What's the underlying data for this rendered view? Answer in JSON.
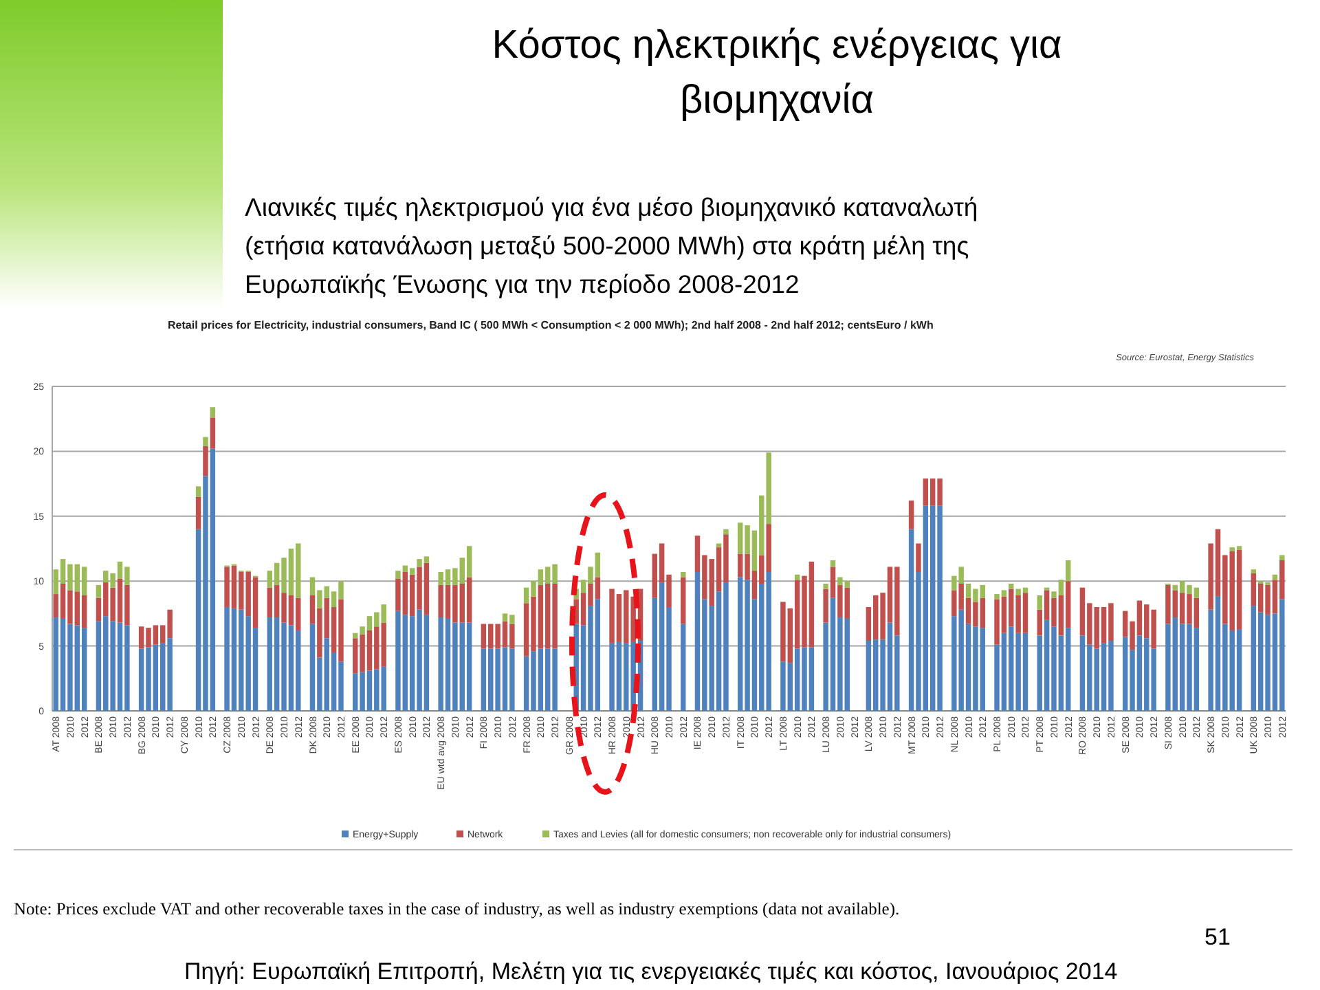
{
  "chart_data": {
    "type": "bar",
    "stacked": true,
    "title": "Κόστος ηλεκτρικής ενέργειας για βιομηχανία",
    "subtitle": "Λιανικές τιμές ηλεκτρισμού για ένα μέσο βιομηχανικό καταναλωτή (ετήσια κατανάλωση μεταξύ 500-2000 MWh) στα κράτη μέλη της Ευρωπαϊκής Ένωσης για την περίοδο 2008-2012",
    "annotations": [
      "Retail prices for Electricity, industrial consumers, Band IC ( 500 MWh < Consumption < 2 000 MWh); 2nd half 2008 - 2nd half 2012; centsEuro / kWh",
      "Source: Eurostat, Energy Statistics",
      "Note: Prices exclude VAT and other recoverable taxes in the case of industry, as well as industry exemptions (data not available).",
      "51",
      "Πηγή: Ευρωπαϊκή Επιτροπή, Μελέτη για τις ενεργειακές τιμές και κόστος, Ιανουάριος 2014"
    ],
    "categories": [
      "AT 2008",
      null,
      "2010",
      null,
      "2012",
      null,
      "BE 2008",
      null,
      "2010",
      null,
      "2012",
      null,
      "BG 2008",
      null,
      "2010",
      null,
      "2012",
      null,
      "CY 2008",
      null,
      "2010",
      null,
      "2012",
      null,
      "CZ 2008",
      null,
      "2010",
      null,
      "2012",
      null,
      "DE 2008",
      null,
      "2010",
      null,
      "2012",
      null,
      "DK 2008",
      null,
      "2010",
      null,
      "2012",
      null,
      "EE 2008",
      null,
      "2010",
      null,
      "2012",
      null,
      "ES 2008",
      null,
      "2010",
      null,
      "2012",
      null,
      "EU wtd avg 2008",
      null,
      "2010",
      null,
      "2012",
      null,
      "FI 2008",
      null,
      "2010",
      null,
      "2012",
      null,
      "FR 2008",
      null,
      "2010",
      null,
      "2012",
      null,
      "GR 2008",
      null,
      "2010",
      null,
      "2012",
      null,
      "HR 2008",
      null,
      "2010",
      null,
      "2012",
      null,
      "HU 2008",
      null,
      "2010",
      null,
      "2012",
      null,
      "IE 2008",
      null,
      "2010",
      null,
      "2012",
      null,
      "IT 2008",
      null,
      "2010",
      null,
      "2012",
      null,
      "LT 2008",
      null,
      "2010",
      null,
      "2012",
      null,
      "LU 2008",
      null,
      "2010",
      null,
      "2012",
      null,
      "LV 2008",
      null,
      "2010",
      null,
      "2012",
      null,
      "MT 2008",
      null,
      "2010",
      null,
      "2012",
      null,
      "NL 2008",
      null,
      "2010",
      null,
      "2012",
      null,
      "PL 2008",
      null,
      "2010",
      null,
      "2012",
      null,
      "PT 2008",
      null,
      "2010",
      null,
      "2012",
      null,
      "RO 2008",
      null,
      "2010",
      null,
      "2012",
      null,
      "SE 2008",
      null,
      "2010",
      null,
      "2012",
      null,
      "SI 2008",
      null,
      "2010",
      null,
      "2012",
      null,
      "SK 2008",
      null,
      "2010",
      null,
      "2012",
      null,
      "UK 2008",
      null,
      "2010",
      null,
      "2012"
    ],
    "series": [
      {
        "name": "Energy+Supply",
        "color": "#4f81bd",
        "values": [
          7.2,
          7.1,
          6.7,
          6.6,
          6.4,
          null,
          6.9,
          7.3,
          6.9,
          6.8,
          6.6,
          null,
          4.8,
          4.9,
          5.1,
          5.2,
          5.6,
          null,
          null,
          null,
          14.0,
          18.1,
          20.2,
          null,
          8.0,
          7.9,
          7.8,
          7.3,
          6.4,
          null,
          7.2,
          7.2,
          6.8,
          6.6,
          6.2,
          null,
          6.7,
          4.1,
          5.6,
          4.5,
          3.8,
          null,
          2.9,
          3.0,
          3.1,
          3.2,
          3.4,
          null,
          7.7,
          7.4,
          7.3,
          7.8,
          7.4,
          null,
          7.2,
          7.1,
          6.8,
          6.8,
          6.8,
          null,
          4.8,
          4.8,
          4.8,
          4.9,
          4.8,
          null,
          4.2,
          4.6,
          4.8,
          4.8,
          4.8,
          null,
          null,
          6.7,
          6.6,
          8.1,
          8.6,
          null,
          5.2,
          5.3,
          5.2,
          5.3,
          5.4,
          null,
          8.7,
          9.9,
          8.0,
          null,
          6.7,
          null,
          10.7,
          8.6,
          8.1,
          9.2,
          9.9,
          null,
          10.3,
          10.1,
          8.6,
          9.8,
          10.7,
          null,
          3.8,
          3.7,
          4.8,
          4.9,
          4.9,
          null,
          6.8,
          8.7,
          7.2,
          7.1,
          null,
          null,
          5.4,
          5.5,
          5.5,
          6.8,
          5.8,
          null,
          14.0,
          10.7,
          15.8,
          15.8,
          15.8,
          null,
          7.3,
          7.8,
          6.7,
          6.5,
          6.4,
          null,
          5.1,
          6.0,
          6.5,
          6.0,
          6.0,
          null,
          5.8,
          7.0,
          6.5,
          5.8,
          6.4,
          null,
          5.8,
          5.1,
          4.8,
          5.2,
          5.4,
          null,
          5.7,
          4.7,
          5.8,
          5.6,
          4.8,
          null,
          6.7,
          7.2,
          6.7,
          6.7,
          6.4,
          null,
          7.8,
          8.8,
          6.7,
          6.2,
          6.3,
          null,
          8.1,
          7.6,
          7.4,
          7.5,
          8.6
        ]
      },
      {
        "name": "Network",
        "color": "#c0504d",
        "values": [
          1.8,
          2.7,
          2.6,
          2.6,
          2.5,
          null,
          1.8,
          2.6,
          2.6,
          3.4,
          3.1,
          null,
          1.7,
          1.5,
          1.5,
          1.4,
          2.2,
          null,
          null,
          null,
          2.5,
          2.3,
          2.4,
          null,
          3.1,
          3.3,
          2.9,
          3.4,
          3.9,
          null,
          2.3,
          2.5,
          2.3,
          2.3,
          2.5,
          null,
          2.2,
          3.8,
          3.1,
          3.5,
          4.8,
          null,
          2.7,
          2.9,
          3.1,
          3.3,
          3.4,
          null,
          2.5,
          3.3,
          3.2,
          3.3,
          4.0,
          null,
          2.5,
          2.6,
          2.9,
          3.0,
          3.5,
          null,
          1.9,
          1.9,
          1.9,
          2.0,
          1.9,
          null,
          4.1,
          4.2,
          4.9,
          5.0,
          5.0,
          null,
          null,
          1.9,
          2.5,
          1.7,
          1.7,
          null,
          4.2,
          3.7,
          4.1,
          3.5,
          4.0,
          null,
          3.4,
          3.0,
          2.5,
          null,
          3.6,
          null,
          2.8,
          3.4,
          3.6,
          3.4,
          3.7,
          null,
          1.8,
          2.0,
          2.2,
          2.2,
          3.7,
          null,
          4.6,
          4.2,
          5.3,
          5.5,
          6.6,
          null,
          2.6,
          2.4,
          2.5,
          2.4,
          null,
          null,
          2.6,
          3.4,
          3.6,
          4.3,
          5.3,
          null,
          2.2,
          2.2,
          2.1,
          2.1,
          2.1,
          null,
          2.0,
          2.0,
          2.0,
          1.9,
          2.3,
          null,
          3.5,
          2.8,
          2.9,
          2.9,
          3.1,
          null,
          2.0,
          2.3,
          2.2,
          3.1,
          3.6,
          null,
          3.7,
          3.2,
          3.2,
          2.8,
          2.9,
          null,
          2.0,
          2.2,
          2.7,
          2.6,
          3.0,
          null,
          3.0,
          2.1,
          2.4,
          2.3,
          2.3,
          null,
          5.1,
          5.2,
          5.3,
          6.1,
          6.1,
          null,
          2.5,
          2.2,
          2.3,
          2.6,
          3.0
        ]
      },
      {
        "name": "Taxes and Levies (all for domestic consumers; non recoverable only for industrial consumers)",
        "color": "#9bbb59",
        "values": [
          1.9,
          1.9,
          2.0,
          2.1,
          2.2,
          null,
          1.0,
          0.9,
          1.1,
          1.3,
          1.4,
          null,
          null,
          null,
          null,
          null,
          null,
          null,
          null,
          null,
          0.8,
          0.7,
          0.8,
          null,
          0.1,
          0.1,
          0.1,
          0.1,
          0.1,
          null,
          1.3,
          1.7,
          2.7,
          3.6,
          4.2,
          null,
          1.4,
          1.4,
          0.9,
          1.2,
          1.4,
          null,
          0.4,
          0.6,
          1.1,
          1.1,
          1.4,
          null,
          0.6,
          0.5,
          0.5,
          0.6,
          0.5,
          null,
          1.0,
          1.2,
          1.3,
          2.0,
          2.4,
          null,
          null,
          null,
          null,
          0.6,
          0.7,
          null,
          1.2,
          1.2,
          1.2,
          1.3,
          1.5,
          null,
          null,
          0.8,
          1.0,
          1.3,
          1.9,
          null,
          null,
          null,
          null,
          null,
          null,
          null,
          null,
          null,
          null,
          null,
          0.4,
          null,
          null,
          null,
          null,
          0.3,
          0.4,
          null,
          2.4,
          2.2,
          3.1,
          4.6,
          5.5,
          null,
          null,
          null,
          0.4,
          null,
          null,
          null,
          0.4,
          0.5,
          0.6,
          0.5,
          null,
          null,
          null,
          null,
          null,
          null,
          null,
          null,
          null,
          null,
          null,
          null,
          null,
          null,
          1.1,
          1.3,
          1.1,
          1.0,
          1.0,
          null,
          0.4,
          0.5,
          0.4,
          0.5,
          0.4,
          null,
          1.1,
          0.2,
          0.5,
          1.2,
          1.6,
          null,
          null,
          null,
          null,
          null,
          null,
          null,
          null,
          null,
          null,
          null,
          null,
          null,
          0.1,
          0.4,
          0.9,
          0.7,
          0.8,
          null,
          null,
          null,
          null,
          0.3,
          0.3,
          null,
          0.3,
          0.2,
          0.2,
          0.4,
          0.4
        ]
      }
    ],
    "ylim": [
      0,
      25
    ],
    "yticks": [
      0,
      5,
      10,
      15,
      20,
      25
    ],
    "grid": "y",
    "legend": "bottom"
  }
}
